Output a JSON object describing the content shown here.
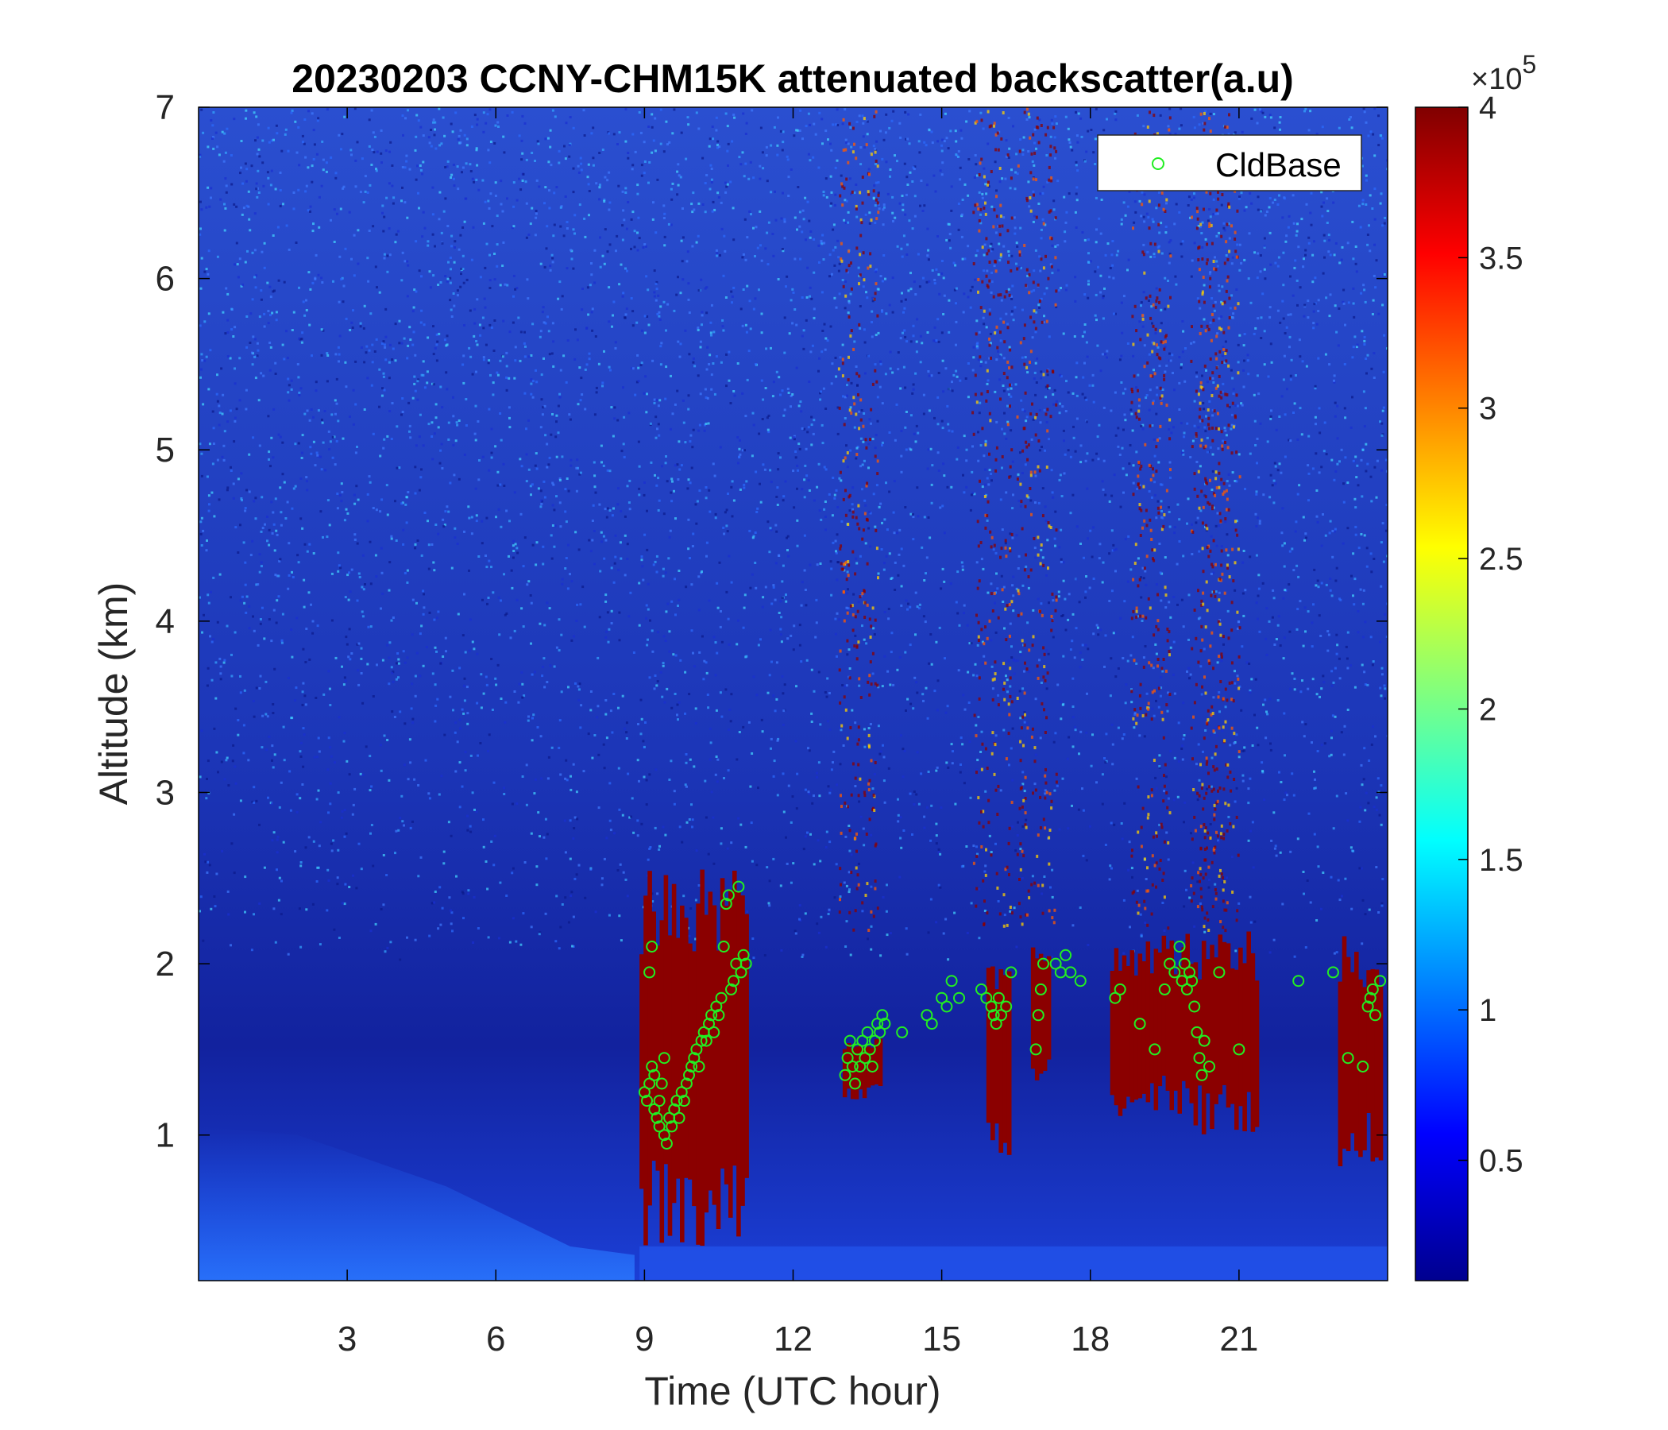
{
  "chart_data": {
    "type": "heatmap",
    "title": "20230203 CCNY-CHM15K attenuated backscatter(a.u)",
    "xlabel": "Time (UTC hour)",
    "ylabel": "Altitude (km)",
    "xlim": [
      0,
      24
    ],
    "ylim": [
      0.15,
      7
    ],
    "xticks": [
      3,
      6,
      9,
      12,
      15,
      18,
      21
    ],
    "yticks": [
      1,
      2,
      3,
      4,
      5,
      6,
      7
    ],
    "colorbar": {
      "range": [
        0.1,
        4
      ],
      "ticks": [
        0.5,
        1,
        1.5,
        2,
        2.5,
        3,
        3.5,
        4
      ],
      "tick_labels": [
        "0.5",
        "1",
        "1.5",
        "2",
        "2.5",
        "3",
        "3.5",
        "4"
      ],
      "exponent_base": "×10",
      "exponent_power": "5",
      "colormap": "jet"
    },
    "legend": {
      "placement": "top-right",
      "entries": [
        "CldBase"
      ]
    },
    "colors": {
      "cldbase_marker": "#22ee22",
      "cloud_core": "#8b0000",
      "background": "#1f3fc0"
    },
    "cloud_regions": [
      {
        "hour_start": 8.9,
        "hour_end": 11.1,
        "alt_bottom": 0.3,
        "alt_top": 2.6
      },
      {
        "hour_start": 13.0,
        "hour_end": 13.8,
        "alt_bottom": 1.2,
        "alt_top": 1.6
      },
      {
        "hour_start": 15.9,
        "hour_end": 16.4,
        "alt_bottom": 0.8,
        "alt_top": 2.0
      },
      {
        "hour_start": 16.8,
        "hour_end": 17.2,
        "alt_bottom": 1.3,
        "alt_top": 2.1
      },
      {
        "hour_start": 18.4,
        "hour_end": 20.0,
        "alt_bottom": 1.1,
        "alt_top": 2.2
      },
      {
        "hour_start": 20.0,
        "hour_end": 21.4,
        "alt_bottom": 1.0,
        "alt_top": 2.2
      },
      {
        "hour_start": 23.0,
        "hour_end": 23.9,
        "alt_bottom": 0.8,
        "alt_top": 2.2
      }
    ],
    "series": [
      {
        "name": "CldBase",
        "type": "scatter",
        "points": [
          [
            9.0,
            1.25
          ],
          [
            9.05,
            1.2
          ],
          [
            9.1,
            1.3
          ],
          [
            9.1,
            1.95
          ],
          [
            9.15,
            2.1
          ],
          [
            9.15,
            1.4
          ],
          [
            9.2,
            1.15
          ],
          [
            9.2,
            1.35
          ],
          [
            9.25,
            1.1
          ],
          [
            9.3,
            1.05
          ],
          [
            9.3,
            1.2
          ],
          [
            9.35,
            1.3
          ],
          [
            9.4,
            1.0
          ],
          [
            9.4,
            1.45
          ],
          [
            9.45,
            0.95
          ],
          [
            9.5,
            1.1
          ],
          [
            9.55,
            1.05
          ],
          [
            9.6,
            1.15
          ],
          [
            9.65,
            1.2
          ],
          [
            9.7,
            1.1
          ],
          [
            9.75,
            1.25
          ],
          [
            9.8,
            1.2
          ],
          [
            9.85,
            1.3
          ],
          [
            9.9,
            1.35
          ],
          [
            9.95,
            1.4
          ],
          [
            10.0,
            1.45
          ],
          [
            10.05,
            1.5
          ],
          [
            10.1,
            1.4
          ],
          [
            10.15,
            1.55
          ],
          [
            10.2,
            1.6
          ],
          [
            10.25,
            1.55
          ],
          [
            10.3,
            1.65
          ],
          [
            10.35,
            1.7
          ],
          [
            10.4,
            1.6
          ],
          [
            10.45,
            1.75
          ],
          [
            10.5,
            1.7
          ],
          [
            10.55,
            1.8
          ],
          [
            10.6,
            2.1
          ],
          [
            10.65,
            2.35
          ],
          [
            10.7,
            2.4
          ],
          [
            10.75,
            1.85
          ],
          [
            10.8,
            1.9
          ],
          [
            10.85,
            2.0
          ],
          [
            10.9,
            2.45
          ],
          [
            10.95,
            1.95
          ],
          [
            11.0,
            2.05
          ],
          [
            11.05,
            2.0
          ],
          [
            13.05,
            1.35
          ],
          [
            13.1,
            1.45
          ],
          [
            13.15,
            1.55
          ],
          [
            13.2,
            1.4
          ],
          [
            13.25,
            1.3
          ],
          [
            13.3,
            1.5
          ],
          [
            13.35,
            1.4
          ],
          [
            13.4,
            1.55
          ],
          [
            13.45,
            1.45
          ],
          [
            13.5,
            1.6
          ],
          [
            13.55,
            1.5
          ],
          [
            13.6,
            1.4
          ],
          [
            13.65,
            1.55
          ],
          [
            13.7,
            1.65
          ],
          [
            13.75,
            1.6
          ],
          [
            13.8,
            1.7
          ],
          [
            13.85,
            1.65
          ],
          [
            14.2,
            1.6
          ],
          [
            14.7,
            1.7
          ],
          [
            14.8,
            1.65
          ],
          [
            15.0,
            1.8
          ],
          [
            15.1,
            1.75
          ],
          [
            15.2,
            1.9
          ],
          [
            15.35,
            1.8
          ],
          [
            15.8,
            1.85
          ],
          [
            15.9,
            1.8
          ],
          [
            16.0,
            1.75
          ],
          [
            16.05,
            1.7
          ],
          [
            16.1,
            1.65
          ],
          [
            16.15,
            1.8
          ],
          [
            16.2,
            1.7
          ],
          [
            16.3,
            1.75
          ],
          [
            16.4,
            1.95
          ],
          [
            16.9,
            1.5
          ],
          [
            16.95,
            1.7
          ],
          [
            17.0,
            1.85
          ],
          [
            17.05,
            2.0
          ],
          [
            17.3,
            2.0
          ],
          [
            17.4,
            1.95
          ],
          [
            17.5,
            2.05
          ],
          [
            17.6,
            1.95
          ],
          [
            17.8,
            1.9
          ],
          [
            18.5,
            1.8
          ],
          [
            18.6,
            1.85
          ],
          [
            19.0,
            1.65
          ],
          [
            19.3,
            1.5
          ],
          [
            19.5,
            1.85
          ],
          [
            19.6,
            2.0
          ],
          [
            19.7,
            1.95
          ],
          [
            19.8,
            2.1
          ],
          [
            19.85,
            1.9
          ],
          [
            19.9,
            2.0
          ],
          [
            19.95,
            1.85
          ],
          [
            20.0,
            1.95
          ],
          [
            20.05,
            1.9
          ],
          [
            20.1,
            1.75
          ],
          [
            20.15,
            1.6
          ],
          [
            20.2,
            1.45
          ],
          [
            20.25,
            1.35
          ],
          [
            20.3,
            1.55
          ],
          [
            20.4,
            1.4
          ],
          [
            20.6,
            1.95
          ],
          [
            21.0,
            1.5
          ],
          [
            22.2,
            1.9
          ],
          [
            22.9,
            1.95
          ],
          [
            23.2,
            1.45
          ],
          [
            23.5,
            1.4
          ],
          [
            23.6,
            1.75
          ],
          [
            23.65,
            1.8
          ],
          [
            23.7,
            1.85
          ],
          [
            23.75,
            1.7
          ],
          [
            23.85,
            1.9
          ]
        ]
      }
    ]
  }
}
